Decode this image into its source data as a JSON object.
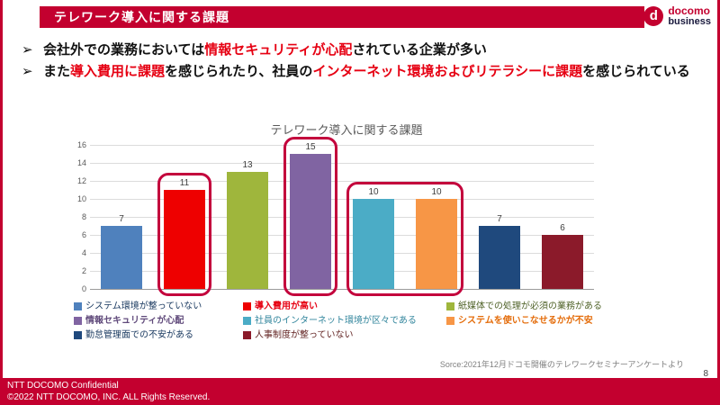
{
  "slide": {
    "header": {
      "title": "テレワーク導入に関する課題"
    },
    "logo": {
      "d": "d",
      "line1": "docomo",
      "line2": "business"
    },
    "bullets": [
      {
        "marker": "➢",
        "segments": [
          {
            "text": "会社外での業務においては",
            "red": false
          },
          {
            "text": "情報セキュリティが心配",
            "red": true
          },
          {
            "text": "されている企業が多い",
            "red": false
          }
        ]
      },
      {
        "marker": "➢",
        "segments": [
          {
            "text": "また",
            "red": false
          },
          {
            "text": "導入費用に課題",
            "red": true
          },
          {
            "text": "を感じられたり、社員の",
            "red": false
          },
          {
            "text": "インターネット環境およびリテラシーに課題",
            "red": true
          },
          {
            "text": "を感じられている",
            "red": false
          }
        ]
      }
    ],
    "source": "Sorce:2021年12月ドコモ開催のテレワークセミナーアンケートより",
    "page_number": "8",
    "footer": {
      "line1": "NTT DOCOMO Confidential",
      "line2": "©2022 NTT DOCOMO, INC. ALL Rights Reserved."
    }
  },
  "chart_data": {
    "type": "bar",
    "title": "テレワーク導入に関する課題",
    "categories": [
      "システム環境が整っていない",
      "導入費用が高い",
      "紙媒体での処理が必須の業務がある",
      "情報セキュリティが心配",
      "社員のインターネット環境が区々である",
      "システムを使いこなせるかが不安",
      "勤怠管理面での不安がある",
      "人事制度が整っていない"
    ],
    "values": [
      7,
      11,
      13,
      15,
      10,
      10,
      7,
      6
    ],
    "colors": [
      "#4F81BD",
      "#EE0000",
      "#9FB63C",
      "#8064A2",
      "#4BACC6",
      "#F79646",
      "#1F497D",
      "#8B1A2A"
    ],
    "legend_label_colors": [
      "#17375E",
      "#E60012",
      "#4F6228",
      "#604A7B",
      "#31859C",
      "#E46C0A",
      "#17375E",
      "#632423"
    ],
    "legend_bold": [
      false,
      true,
      false,
      true,
      false,
      true,
      false,
      false
    ],
    "xlabel": "",
    "ylabel": "",
    "ylim": [
      0,
      16
    ],
    "ytick_step": 2,
    "grid": true,
    "legend_position": "bottom",
    "highlights": [
      [
        1
      ],
      [
        3
      ],
      [
        4,
        5
      ]
    ]
  }
}
